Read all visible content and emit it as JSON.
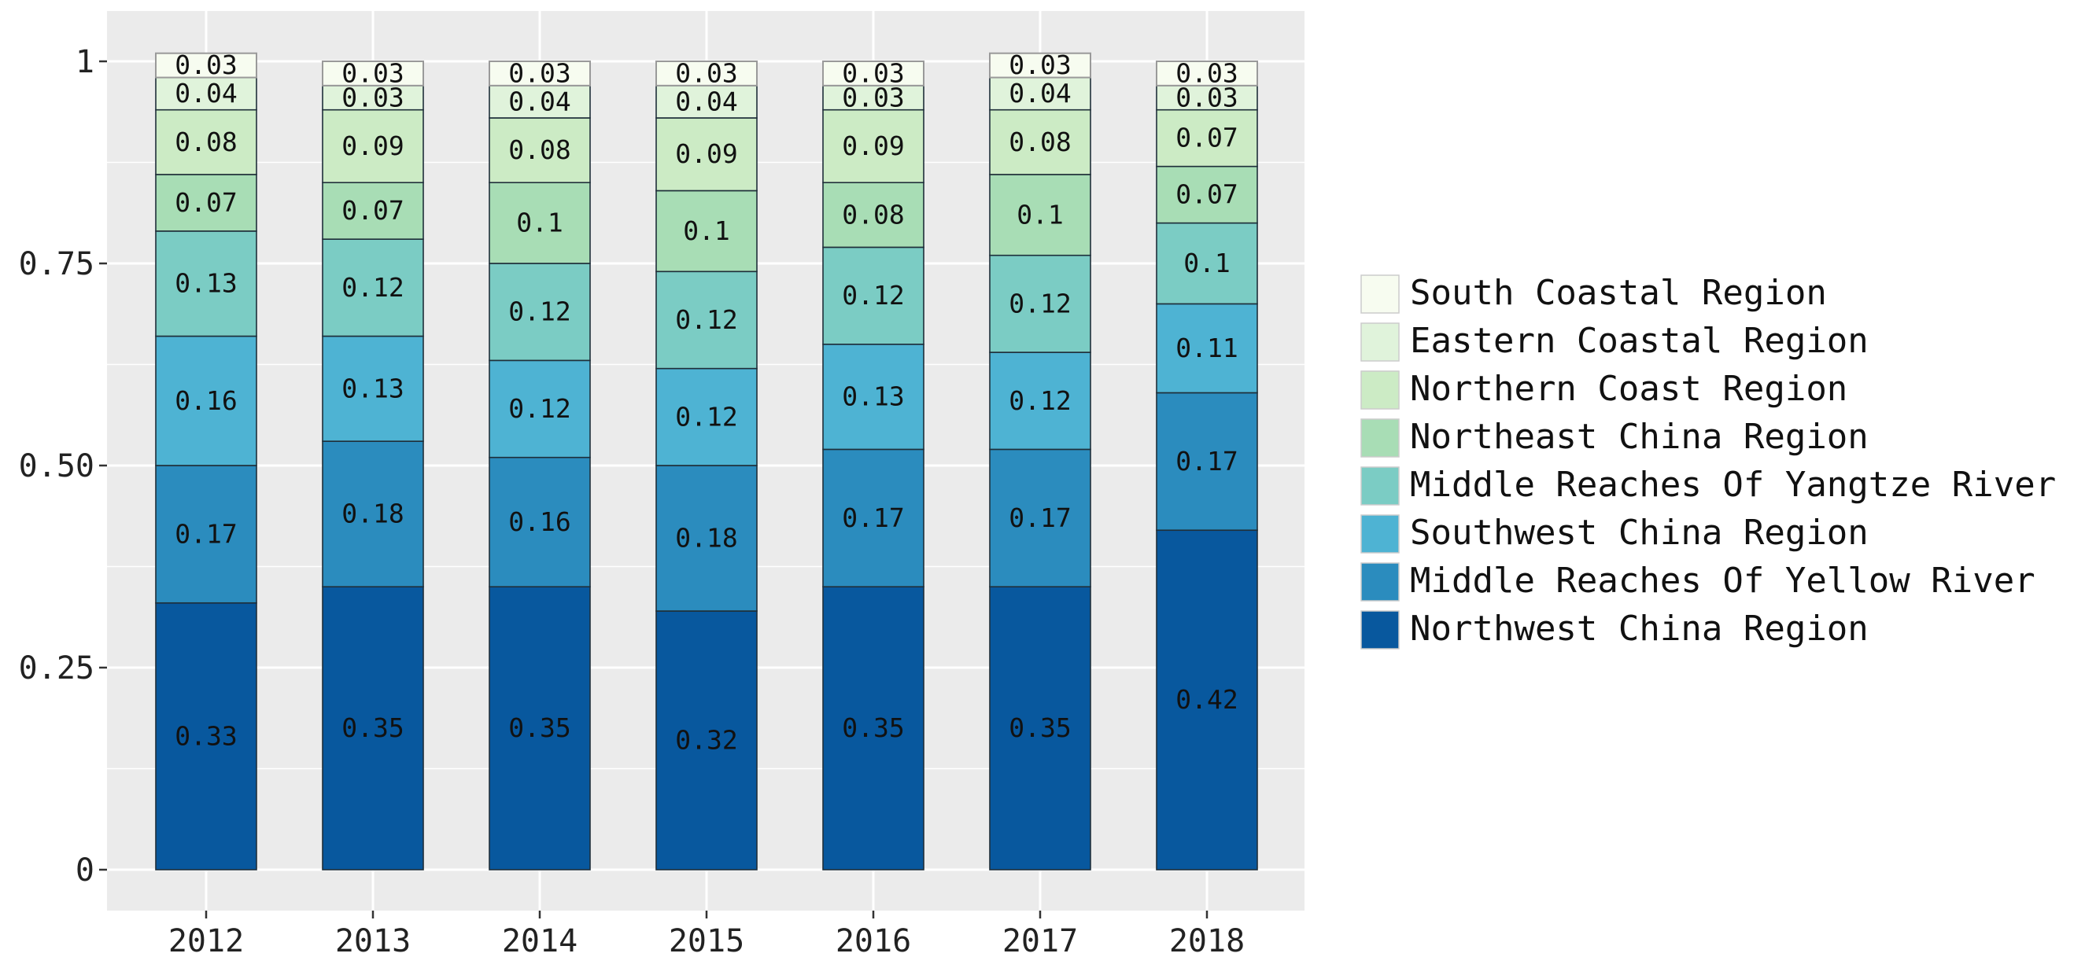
{
  "chart_data": {
    "type": "bar",
    "stacked": true,
    "categories": [
      "2012",
      "2013",
      "2014",
      "2015",
      "2016",
      "2017",
      "2018"
    ],
    "y_tick_labels": [
      "0",
      "0.25",
      "0.50",
      "0.75",
      "1"
    ],
    "y_ticks": [
      0,
      0.25,
      0.5,
      0.75,
      1
    ],
    "ylim": [
      0,
      1.05
    ],
    "grid": true,
    "legend_position": "right",
    "series": [
      {
        "name": "Northwest China Region",
        "color": "#08589e",
        "values": [
          0.33,
          0.35,
          0.35,
          0.32,
          0.35,
          0.35,
          0.42
        ],
        "labels": [
          "0.33",
          "0.35",
          "0.35",
          "0.32",
          "0.35",
          "0.35",
          "0.42"
        ]
      },
      {
        "name": "Middle Reaches Of Yellow River",
        "color": "#2b8cbe",
        "values": [
          0.17,
          0.18,
          0.16,
          0.18,
          0.17,
          0.17,
          0.17
        ],
        "labels": [
          "0.17",
          "0.18",
          "0.16",
          "0.18",
          "0.17",
          "0.17",
          "0.17"
        ]
      },
      {
        "name": "Southwest China Region",
        "color": "#4eb3d3",
        "values": [
          0.16,
          0.13,
          0.12,
          0.12,
          0.13,
          0.12,
          0.11
        ],
        "labels": [
          "0.16",
          "0.13",
          "0.12",
          "0.12",
          "0.13",
          "0.12",
          "0.11"
        ]
      },
      {
        "name": "Middle Reaches Of Yangtze River",
        "color": "#7bccc4",
        "values": [
          0.13,
          0.12,
          0.12,
          0.12,
          0.12,
          0.12,
          0.1
        ],
        "labels": [
          "0.13",
          "0.12",
          "0.12",
          "0.12",
          "0.12",
          "0.12",
          "0.1"
        ]
      },
      {
        "name": "Northeast China Region",
        "color": "#a8ddb5",
        "values": [
          0.07,
          0.07,
          0.1,
          0.1,
          0.08,
          0.1,
          0.07
        ],
        "labels": [
          "0.07",
          "0.07",
          "0.1",
          "0.1",
          "0.08",
          "0.1",
          "0.07"
        ]
      },
      {
        "name": "Northern Coast Region",
        "color": "#ccebc5",
        "values": [
          0.08,
          0.09,
          0.08,
          0.09,
          0.09,
          0.08,
          0.07
        ],
        "labels": [
          "0.08",
          "0.09",
          "0.08",
          "0.09",
          "0.09",
          "0.08",
          "0.07"
        ]
      },
      {
        "name": "Eastern Coastal Region",
        "color": "#e0f3db",
        "values": [
          0.04,
          0.03,
          0.04,
          0.04,
          0.03,
          0.04,
          0.03
        ],
        "labels": [
          "0.04",
          "0.03",
          "0.04",
          "0.04",
          "0.03",
          "0.04",
          "0.03"
        ]
      },
      {
        "name": "South Coastal Region",
        "color": "#f7fcf0",
        "values": [
          0.03,
          0.03,
          0.03,
          0.03,
          0.03,
          0.03,
          0.03
        ],
        "labels": [
          "0.03",
          "0.03",
          "0.03",
          "0.03",
          "0.03",
          "0.03",
          "0.03"
        ]
      }
    ],
    "legend_order": [
      "South Coastal Region",
      "Eastern Coastal Region",
      "Northern Coast Region",
      "Northeast China Region",
      "Middle Reaches Of Yangtze River",
      "Southwest China Region",
      "Middle Reaches Of Yellow River",
      "Northwest China Region"
    ],
    "colors": {
      "panel_background": "#ebebeb",
      "grid": "#ffffff"
    }
  }
}
